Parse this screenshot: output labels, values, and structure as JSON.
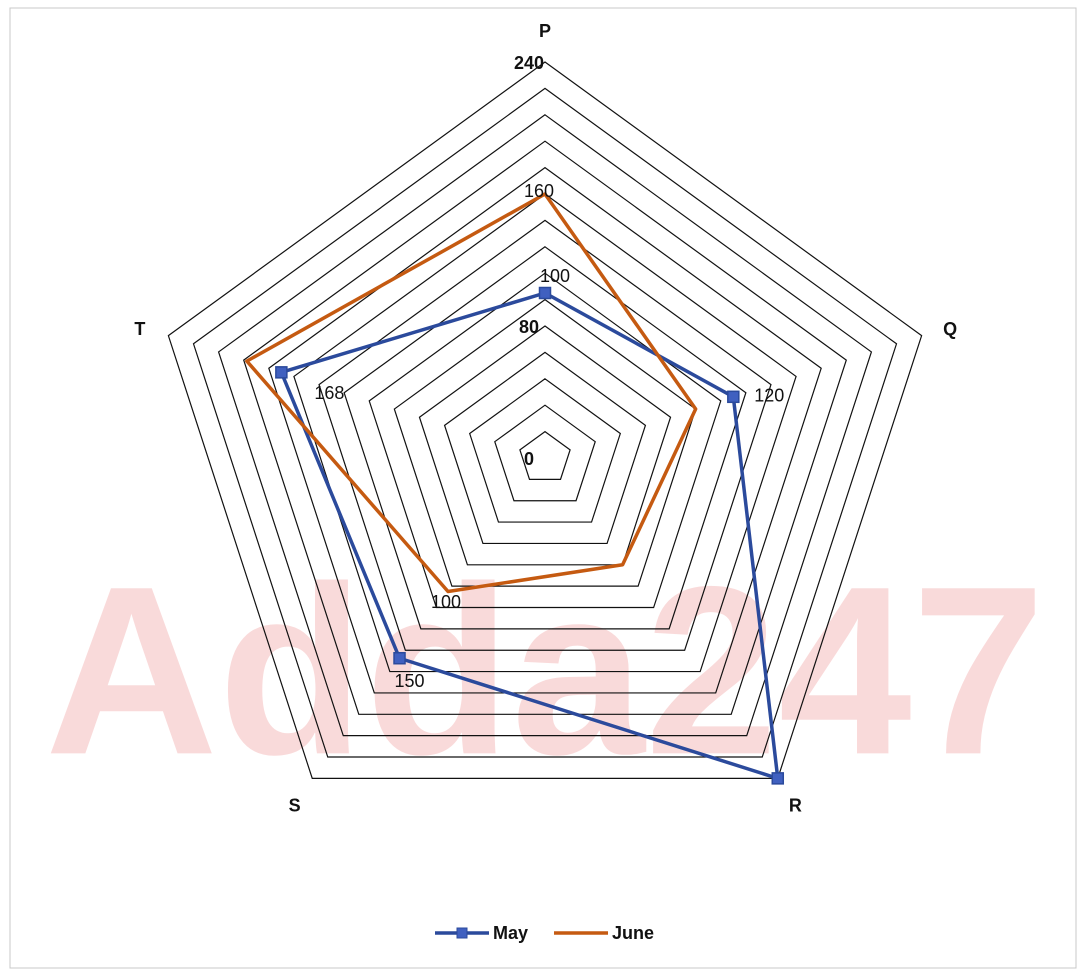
{
  "chart_data": {
    "type": "radar",
    "watermark": "Adda247",
    "categories": [
      "P",
      "Q",
      "R",
      "S",
      "T"
    ],
    "series": [
      {
        "name": "May",
        "color": "#2b4a9c",
        "values": [
          100,
          120,
          240,
          150,
          168
        ],
        "value_labels": [
          "100",
          "120",
          null,
          "150",
          "168"
        ]
      },
      {
        "name": "June",
        "color": "#c55a11",
        "values": [
          160,
          96,
          80,
          100,
          190
        ],
        "value_labels": [
          "160",
          null,
          null,
          "100",
          null
        ]
      }
    ],
    "ylim": [
      0,
      240
    ],
    "yticks": [
      0,
      80,
      240
    ],
    "grid_rings": [
      16,
      32,
      48,
      64,
      80,
      96,
      112,
      128,
      144,
      160,
      176,
      192,
      208,
      224,
      240
    ],
    "legend": "bottom"
  }
}
